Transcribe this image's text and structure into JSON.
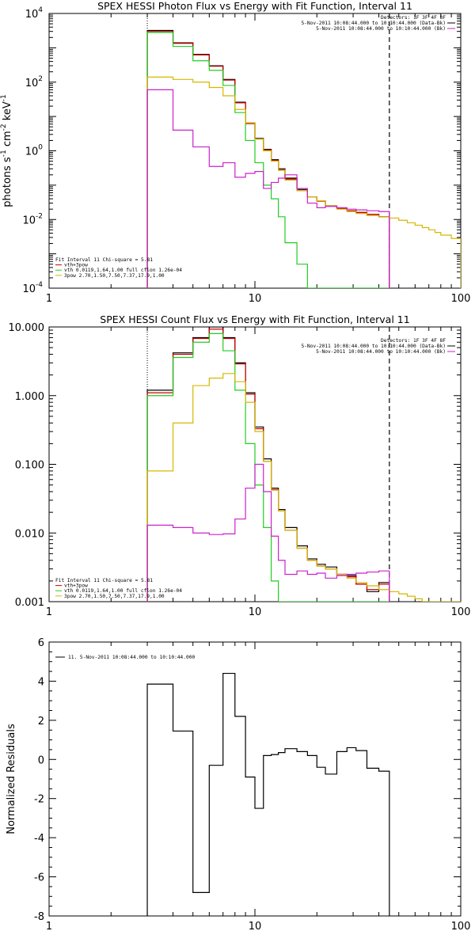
{
  "chart_data": [
    {
      "type": "line",
      "title": "SPEX HESSI Photon Flux vs Energy with Fit Function, Interval 11",
      "xlabel": "",
      "ylabel": "photons s",
      "ylabel_parts": [
        "photons s",
        "-1",
        " cm",
        "-2",
        " keV",
        "-1"
      ],
      "xscale": "log",
      "yscale": "log",
      "xlim": [
        1,
        100
      ],
      "ylim": [
        0.0001,
        10000
      ],
      "xticks": [
        {
          "v": 1,
          "label": "1"
        },
        {
          "v": 10,
          "label": "10"
        },
        {
          "v": 100,
          "label": "100"
        }
      ],
      "yticks": [
        {
          "v": 0.0001,
          "base": "10",
          "exp": "-4"
        },
        {
          "v": 0.01,
          "base": "10",
          "exp": "-2"
        },
        {
          "v": 1,
          "base": "10",
          "exp": "0"
        },
        {
          "v": 100,
          "base": "10",
          "exp": "2"
        },
        {
          "v": 10000,
          "base": "10",
          "exp": "4"
        }
      ],
      "fit_range": [
        3,
        45
      ],
      "legend_left": [
        "Fit Interval 11   Chi-square = 5.81",
        "vth+3pow",
        "vth 0.0119,1.64,1.00  full cflon 1.26e-04",
        "3pow 2.70,1.50,7.50,7.37,17.9,1.00"
      ],
      "legend_right": [
        "Detectors: 1F 3F 4F 8F",
        "5-Nov-2011 10:08:44.000 to 10:10:44.000 (Data-Bk)",
        "5-Nov-2011 10:08:44.000 to 10:10:44.000 (Bk)"
      ],
      "bin_edges": [
        3,
        4,
        5,
        6,
        7,
        8,
        9,
        10,
        11,
        12,
        13,
        14,
        16,
        18,
        20,
        22,
        25,
        28,
        31,
        35,
        40,
        45,
        50,
        55,
        60,
        65,
        70,
        75,
        80,
        90,
        100
      ],
      "series": [
        {
          "key": "data",
          "color": "#000000",
          "values": [
            3200,
            1400,
            640,
            300,
            120,
            26,
            6.5,
            2.3,
            1.1,
            0.55,
            0.3,
            0.16,
            0.075,
            0.045,
            0.035,
            0.025,
            0.021,
            0.018,
            0.016,
            0.014,
            0.012
          ]
        },
        {
          "key": "fit",
          "color": "#cc0000",
          "values": [
            3000,
            1350,
            620,
            290,
            115,
            25,
            6.2,
            2.2,
            1.05,
            0.52,
            0.28,
            0.15,
            0.07,
            0.045,
            0.034,
            0.025,
            0.021,
            0.018,
            0.016,
            0.014,
            0.012
          ]
        },
        {
          "key": "vth",
          "color": "#22cc22",
          "values": [
            2800,
            1100,
            420,
            220,
            80,
            13,
            2.0,
            0.45,
            0.1,
            0.04,
            0.012,
            0.0021,
            0.0005,
            6e-05,
            4e-05,
            4e-05,
            4e-05,
            4e-05,
            4e-05,
            4e-05,
            4e-05
          ]
        },
        {
          "key": "pow",
          "color": "#d4b800",
          "values": [
            140,
            120,
            100,
            70,
            40,
            16,
            6.5,
            2.2,
            1.0,
            0.5,
            0.27,
            0.14,
            0.07,
            0.045,
            0.035,
            0.025,
            0.02,
            0.017,
            0.015,
            0.013,
            0.012,
            0.011,
            0.0095,
            0.008,
            0.0068,
            0.0058,
            0.005,
            0.0042,
            0.0035,
            0.0028
          ]
        },
        {
          "key": "bk",
          "color": "#cc22cc",
          "values": [
            60,
            4,
            1.3,
            0.35,
            0.45,
            0.17,
            0.22,
            0.25,
            0.08,
            0.12,
            0.16,
            0.2,
            0.08,
            0.03,
            0.022,
            0.024,
            0.022,
            0.02,
            0.019,
            0.018,
            0.017
          ]
        }
      ]
    },
    {
      "type": "line",
      "title": "SPEX HESSI Count Flux vs Energy with Fit Function, Interval 11",
      "xlabel": "",
      "ylabel": "",
      "xscale": "log",
      "yscale": "log",
      "xlim": [
        1,
        100
      ],
      "ylim": [
        0.001,
        10
      ],
      "xticks": [
        {
          "v": 1,
          "label": "1"
        },
        {
          "v": 10,
          "label": "10"
        },
        {
          "v": 100,
          "label": "100"
        }
      ],
      "yticks": [
        {
          "v": 0.001,
          "label": "0.001"
        },
        {
          "v": 0.01,
          "label": "0.010"
        },
        {
          "v": 0.1,
          "label": "0.100"
        },
        {
          "v": 1,
          "label": "1.000"
        },
        {
          "v": 10,
          "label": "10.000"
        }
      ],
      "fit_range": [
        3,
        45
      ],
      "legend_left": [
        "Fit Interval 11   Chi-square = 5.81",
        "vth+3pow",
        "vth 0.0119,1.64,1.00  full cflon 1.26e-04",
        "3pow 2.70,1.50,7.50,7.37,17.9,1.00"
      ],
      "legend_right": [
        "Detectors: 1F 3F 4F 8F",
        "5-Nov-2011 10:08:44.000 to 10:10:44.000 (Data-Bk)",
        "5-Nov-2011 10:08:44.000 to 10:10:44.000 (Bk)"
      ],
      "bin_edges": [
        3,
        4,
        5,
        6,
        7,
        8,
        9,
        10,
        11,
        12,
        13,
        14,
        16,
        18,
        20,
        22,
        25,
        28,
        31,
        35,
        40,
        45,
        50,
        55,
        60,
        65,
        70,
        75,
        80,
        90,
        100
      ],
      "series": [
        {
          "key": "data",
          "color": "#000000",
          "values": [
            1.2,
            4.2,
            7.0,
            10.0,
            7.0,
            3.0,
            1.1,
            0.35,
            0.12,
            0.045,
            0.022,
            0.012,
            0.0065,
            0.0042,
            0.0035,
            0.0032,
            0.0025,
            0.0024,
            0.0018,
            0.0014,
            0.0019
          ]
        },
        {
          "key": "fit",
          "color": "#cc0000",
          "values": [
            1.1,
            4.0,
            6.8,
            9.3,
            6.8,
            2.9,
            1.05,
            0.33,
            0.11,
            0.043,
            0.021,
            0.011,
            0.006,
            0.004,
            0.0033,
            0.003,
            0.0025,
            0.0023,
            0.0018,
            0.0015,
            0.0018
          ]
        },
        {
          "key": "vth",
          "color": "#22cc22",
          "values": [
            1.0,
            3.6,
            6.0,
            8.0,
            4.5,
            1.2,
            0.2,
            0.05,
            0.012,
            0.002,
            0.0008,
            0.0008,
            0.0008,
            0.0008,
            0.0008,
            0.0008,
            0.0008,
            0.0008,
            0.0008,
            0.0008,
            0.0008
          ]
        },
        {
          "key": "pow",
          "color": "#d4b800",
          "values": [
            0.08,
            0.4,
            1.4,
            1.8,
            2.1,
            1.6,
            0.8,
            0.3,
            0.11,
            0.042,
            0.021,
            0.011,
            0.006,
            0.004,
            0.0033,
            0.003,
            0.0025,
            0.0022,
            0.0019,
            0.0017,
            0.0015,
            0.0014,
            0.0013,
            0.0012,
            0.0011,
            0.001,
            0.0009,
            0.0008,
            0.0008,
            0.0008
          ]
        },
        {
          "key": "bk",
          "color": "#cc22cc",
          "values": [
            0.013,
            0.012,
            0.01,
            0.0095,
            0.0097,
            0.016,
            0.045,
            0.1,
            0.04,
            0.009,
            0.004,
            0.0025,
            0.0028,
            0.0025,
            0.0026,
            0.0022,
            0.0024,
            0.0025,
            0.0026,
            0.0027,
            0.0028
          ]
        }
      ]
    },
    {
      "type": "line",
      "title": "",
      "xlabel": "",
      "ylabel": "Normalized Residuals",
      "xscale": "log",
      "yscale": "linear",
      "xlim": [
        1,
        100
      ],
      "ylim": [
        -8,
        6
      ],
      "xticks": [
        {
          "v": 1,
          "label": "1"
        },
        {
          "v": 10,
          "label": "10"
        },
        {
          "v": 100,
          "label": "100"
        }
      ],
      "yticks": [
        {
          "v": -8,
          "label": "-8"
        },
        {
          "v": -6,
          "label": "-6"
        },
        {
          "v": -4,
          "label": "-4"
        },
        {
          "v": -2,
          "label": "-2"
        },
        {
          "v": 0,
          "label": "0"
        },
        {
          "v": 2,
          "label": "2"
        },
        {
          "v": 4,
          "label": "4"
        },
        {
          "v": 6,
          "label": "6"
        }
      ],
      "legend_left": [
        "11.  5-Nov-2011 10:08:44.000 to 10:10:44.000"
      ],
      "bin_edges": [
        3,
        4,
        5,
        6,
        7,
        8,
        9,
        10,
        11,
        12,
        13,
        14,
        16,
        18,
        20,
        22,
        25,
        28,
        31,
        35,
        40,
        45
      ],
      "series": [
        {
          "key": "resid",
          "color": "#000000",
          "values": [
            3.85,
            1.45,
            -6.8,
            -0.3,
            4.4,
            2.2,
            -0.9,
            -2.5,
            0.2,
            0.25,
            0.35,
            0.55,
            0.4,
            0.2,
            -0.4,
            -0.75,
            0.4,
            0.6,
            0.45,
            -0.45,
            -0.6
          ]
        }
      ]
    }
  ]
}
